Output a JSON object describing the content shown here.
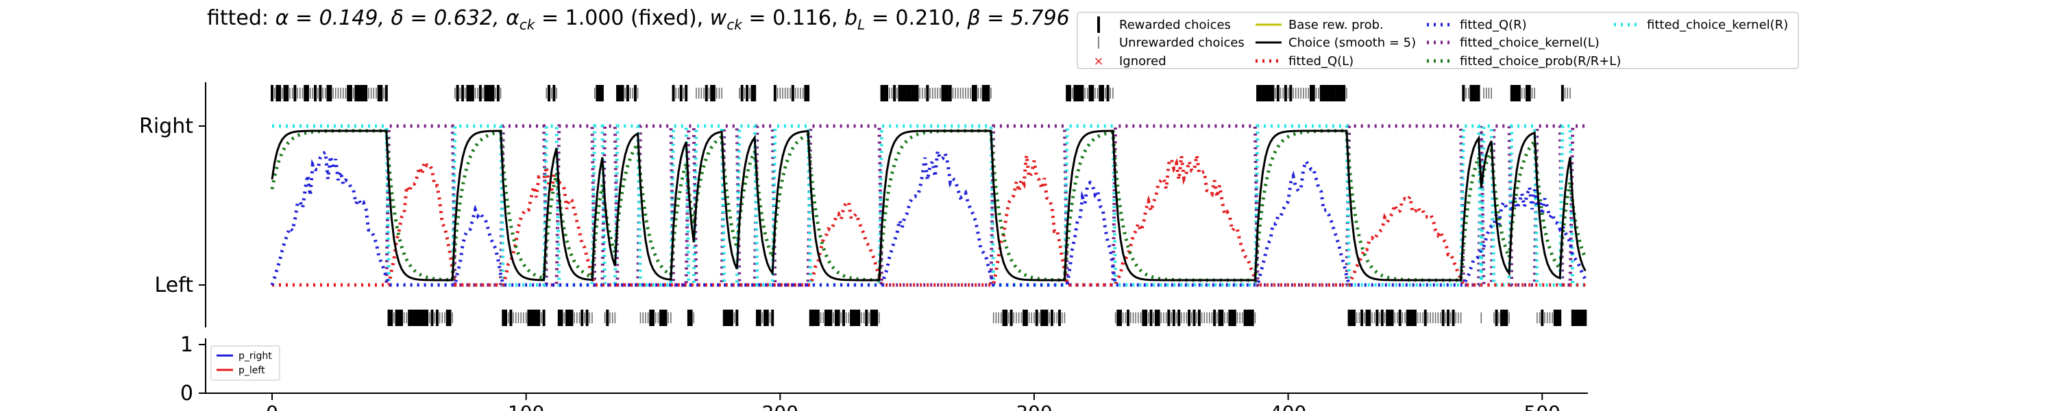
{
  "chart_data": [
    {
      "type": "line",
      "title": "fitted: α = 0.149, δ = 0.632, α_ck = 1.000 (fixed), w_ck = 0.116, b_L = 0.210, β = 5.796",
      "title_parts": {
        "prefix": "fitted: ",
        "alpha": "α = 0.149, ",
        "delta": "δ = 0.632, ",
        "alpha_ck_sym": "α",
        "alpha_ck_sub": "ck",
        "alpha_ck_val": " = 1.000 (fixed), ",
        "w_ck_sym": "w",
        "w_ck_sub": "ck",
        "w_ck_val": " = 0.116, ",
        "b_L_sym": "b",
        "b_L_sub": "L",
        "b_L_val": " = 0.210, ",
        "beta": "β = 5.796"
      },
      "yticks": [
        "Left",
        "Right"
      ],
      "ylim": [
        0,
        1
      ],
      "xlim": [
        0,
        518
      ],
      "legend_position": "upper right, above plot",
      "legend": [
        {
          "label": "Rewarded choices",
          "style": "thick-tick",
          "color": "#000000"
        },
        {
          "label": "Unrewarded choices",
          "style": "thin-tick",
          "color": "#555555"
        },
        {
          "label": "Ignored",
          "style": "x",
          "color": "#e31a1c"
        },
        {
          "label": "Base rew. prob.",
          "style": "solid",
          "color": "#bfbf00"
        },
        {
          "label": "Choice (smooth = 5)",
          "style": "solid",
          "color": "#000000"
        },
        {
          "label": "fitted_Q(L)",
          "style": "dotted",
          "color": "#e31a1c"
        },
        {
          "label": "fitted_Q(R)",
          "style": "dotted",
          "color": "#1f1fd9"
        },
        {
          "label": "fitted_choice_kernel(L)",
          "style": "dotted",
          "color": "#7b1f86"
        },
        {
          "label": "fitted_choice_prob(R/R+L)",
          "style": "dotted",
          "color": "#1a7a1a"
        },
        {
          "label": "fitted_choice_kernel(R)",
          "style": "dotted",
          "color": "#22e5e5"
        }
      ],
      "choice_blocks": [
        {
          "side": "R",
          "start": 0,
          "end": 46
        },
        {
          "side": "L",
          "start": 46,
          "end": 72
        },
        {
          "side": "R",
          "start": 72,
          "end": 91
        },
        {
          "side": "L",
          "start": 91,
          "end": 108
        },
        {
          "side": "R",
          "start": 108,
          "end": 113
        },
        {
          "side": "L",
          "start": 113,
          "end": 127
        },
        {
          "side": "R",
          "start": 127,
          "end": 131
        },
        {
          "side": "L",
          "start": 131,
          "end": 136
        },
        {
          "side": "R",
          "start": 136,
          "end": 145
        },
        {
          "side": "L",
          "start": 145,
          "end": 158
        },
        {
          "side": "R",
          "start": 158,
          "end": 164
        },
        {
          "side": "L",
          "start": 164,
          "end": 167
        },
        {
          "side": "R",
          "start": 167,
          "end": 178
        },
        {
          "side": "L",
          "start": 178,
          "end": 184
        },
        {
          "side": "R",
          "start": 184,
          "end": 191
        },
        {
          "side": "L",
          "start": 191,
          "end": 198
        },
        {
          "side": "R",
          "start": 198,
          "end": 212
        },
        {
          "side": "L",
          "start": 212,
          "end": 240
        },
        {
          "side": "R",
          "start": 240,
          "end": 284
        },
        {
          "side": "L",
          "start": 284,
          "end": 313
        },
        {
          "side": "R",
          "start": 313,
          "end": 332
        },
        {
          "side": "L",
          "start": 332,
          "end": 388
        },
        {
          "side": "R",
          "start": 388,
          "end": 424
        },
        {
          "side": "L",
          "start": 424,
          "end": 469
        },
        {
          "side": "R",
          "start": 469,
          "end": 476
        },
        {
          "side": "L",
          "start": 476,
          "end": 477
        },
        {
          "side": "R",
          "start": 477,
          "end": 481
        },
        {
          "side": "L",
          "start": 481,
          "end": 488
        },
        {
          "side": "R",
          "start": 488,
          "end": 498
        },
        {
          "side": "L",
          "start": 498,
          "end": 508
        },
        {
          "side": "R",
          "start": 508,
          "end": 512
        },
        {
          "side": "L",
          "start": 512,
          "end": 518
        }
      ],
      "q_right_peaks": [
        {
          "start": 0,
          "end": 46,
          "peak": 0.82
        },
        {
          "start": 72,
          "end": 91,
          "peak": 0.5
        },
        {
          "start": 240,
          "end": 284,
          "peak": 0.82
        },
        {
          "start": 313,
          "end": 332,
          "peak": 0.7
        },
        {
          "start": 388,
          "end": 424,
          "peak": 0.75
        },
        {
          "start": 469,
          "end": 518,
          "peak": 0.6
        }
      ],
      "q_left_peaks": [
        {
          "start": 46,
          "end": 72,
          "peak": 0.82
        },
        {
          "start": 91,
          "end": 127,
          "peak": 0.72
        },
        {
          "start": 212,
          "end": 240,
          "peak": 0.52
        },
        {
          "start": 284,
          "end": 313,
          "peak": 0.82
        },
        {
          "start": 332,
          "end": 388,
          "peak": 0.8
        },
        {
          "start": 424,
          "end": 469,
          "peak": 0.55
        }
      ]
    },
    {
      "type": "line",
      "ylim": [
        0,
        1
      ],
      "yticks": [
        "0",
        "1"
      ],
      "xlim": [
        0,
        518
      ],
      "xticks": [
        0,
        100,
        200,
        300,
        400,
        500
      ],
      "legend_position": "upper left",
      "series": [
        {
          "name": "p_right",
          "color": "#1f1fd9",
          "values": []
        },
        {
          "name": "p_left",
          "color": "#e31a1c",
          "values": []
        }
      ]
    }
  ]
}
